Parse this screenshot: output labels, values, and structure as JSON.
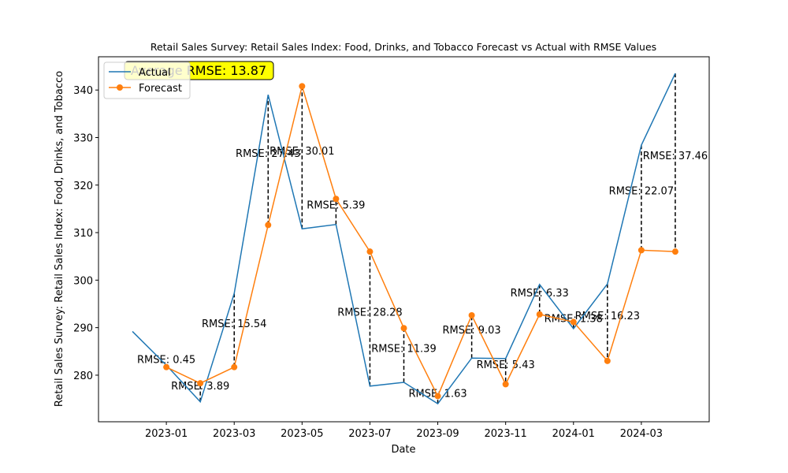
{
  "chart_data": {
    "type": "line",
    "title": "Retail Sales Survey: Retail Sales Index: Food, Drinks, and Tobacco Forecast vs Actual with RMSE Values",
    "xlabel": "Date",
    "ylabel": "Retail Sales Survey: Retail Sales Index: Food, Drinks, and Tobacco",
    "x": [
      "2022-12",
      "2023-01",
      "2023-02",
      "2023-03",
      "2023-04",
      "2023-05",
      "2023-06",
      "2023-07",
      "2023-08",
      "2023-09",
      "2023-10",
      "2023-11",
      "2023-12",
      "2024-01",
      "2024-02",
      "2024-03",
      "2024-04"
    ],
    "series": [
      {
        "name": "Actual",
        "color": "#1f77b4",
        "marker": false,
        "values": [
          289.2,
          282.1,
          274.4,
          297.2,
          339.0,
          310.8,
          311.7,
          277.7,
          278.5,
          274.0,
          283.6,
          283.5,
          299.1,
          289.8,
          299.2,
          328.4,
          343.5
        ]
      },
      {
        "name": "Forecast",
        "color": "#ff7f0e",
        "marker": true,
        "values": [
          null,
          281.7,
          278.3,
          281.7,
          311.6,
          340.8,
          317.1,
          306.0,
          289.9,
          275.6,
          292.6,
          278.1,
          292.8,
          291.2,
          283.0,
          306.3,
          306.0
        ]
      }
    ],
    "error_labels": [
      null,
      "RMSE: 0.45",
      "RMSE: 3.89",
      "RMSE: 15.54",
      "RMSE: 27.43",
      "RMSE: 30.01",
      "RMSE: 5.39",
      "RMSE: 28.28",
      "RMSE: 11.39",
      "RMSE: 1.63",
      "RMSE: 9.03",
      "RMSE: 5.43",
      "RMSE: 6.33",
      "RMSE: 1.38",
      "RMSE: 16.23",
      "RMSE: 22.07",
      "RMSE: 37.46"
    ],
    "average_label": "Average RMSE: 13.87",
    "average_color": "#ffff00",
    "xlim": [
      "2022-11",
      "2024-05"
    ],
    "xticks": [
      "2023-01",
      "2023-03",
      "2023-05",
      "2023-07",
      "2023-09",
      "2023-11",
      "2024-01",
      "2024-03"
    ],
    "ylim": [
      270.2,
      347.0
    ],
    "yticks": [
      280,
      290,
      300,
      310,
      320,
      330,
      340
    ],
    "grid": false,
    "legend": "upper-left"
  }
}
